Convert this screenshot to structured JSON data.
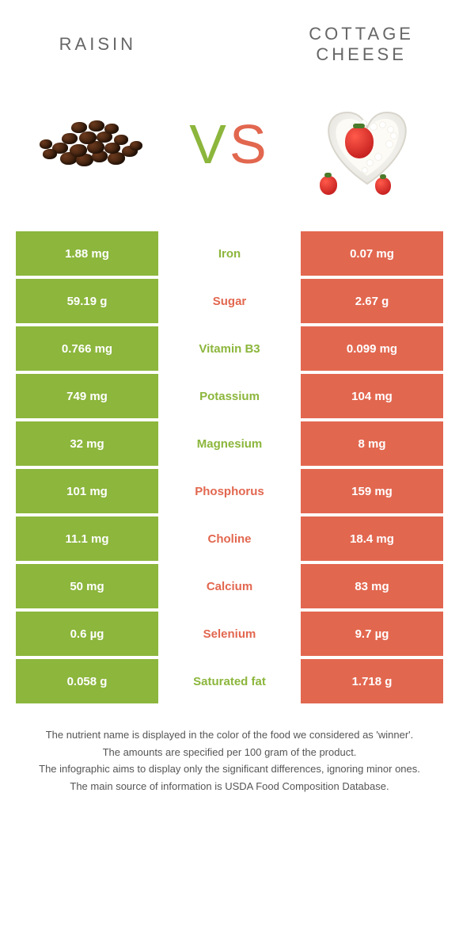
{
  "colors": {
    "left": "#8cb63c",
    "right": "#e2674f",
    "bg": "#ffffff",
    "text": "#555555"
  },
  "foods": {
    "left": {
      "title": "RAISIN"
    },
    "right": {
      "title": "COTTAGE CHEESE"
    }
  },
  "vs": {
    "v": "V",
    "s": "S"
  },
  "rows": [
    {
      "nutrient": "Iron",
      "left": "1.88 mg",
      "right": "0.07 mg",
      "winner": "left"
    },
    {
      "nutrient": "Sugar",
      "left": "59.19 g",
      "right": "2.67 g",
      "winner": "right"
    },
    {
      "nutrient": "Vitamin B3",
      "left": "0.766 mg",
      "right": "0.099 mg",
      "winner": "left"
    },
    {
      "nutrient": "Potassium",
      "left": "749 mg",
      "right": "104 mg",
      "winner": "left"
    },
    {
      "nutrient": "Magnesium",
      "left": "32 mg",
      "right": "8 mg",
      "winner": "left"
    },
    {
      "nutrient": "Phosphorus",
      "left": "101 mg",
      "right": "159 mg",
      "winner": "right"
    },
    {
      "nutrient": "Choline",
      "left": "11.1 mg",
      "right": "18.4 mg",
      "winner": "right"
    },
    {
      "nutrient": "Calcium",
      "left": "50 mg",
      "right": "83 mg",
      "winner": "right"
    },
    {
      "nutrient": "Selenium",
      "left": "0.6 µg",
      "right": "9.7 µg",
      "winner": "right"
    },
    {
      "nutrient": "Saturated fat",
      "left": "0.058 g",
      "right": "1.718 g",
      "winner": "left"
    }
  ],
  "footnotes": [
    "The nutrient name is displayed in the color of the food we considered as 'winner'.",
    "The amounts are specified per 100 gram of the product.",
    "The infographic aims to display only the significant differences, ignoring minor ones.",
    "The main source of information is USDA Food Composition Database."
  ]
}
